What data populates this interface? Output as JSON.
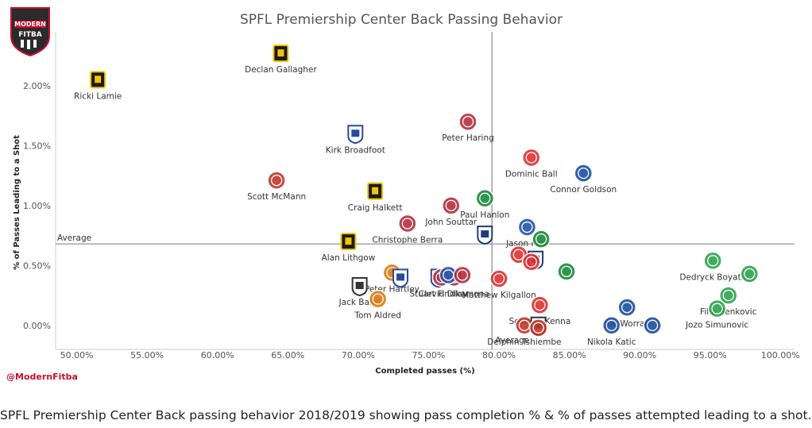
{
  "logo": {
    "line1": "MODERN",
    "line2": "FITBA"
  },
  "handle": "@ModernFitba",
  "caption": "SPFL Premiership Center Back passing behavior 2018/2019 showing pass completion % & % of passes attempted leading to a shot.",
  "chart_data": {
    "type": "scatter",
    "title": "SPFL Premiership Center Back Passing Behavior",
    "xlabel": "Completed passes (%)",
    "ylabel": "% of Passes Leading to a Shot",
    "xlim": [
      48.5,
      101
    ],
    "ylim": [
      -0.2,
      2.45
    ],
    "x_ticks": [
      50,
      55,
      60,
      65,
      70,
      75,
      80,
      85,
      90,
      95,
      100
    ],
    "x_tick_labels": [
      "50.00%",
      "55.00%",
      "60.00%",
      "65.00%",
      "70.00%",
      "75.00%",
      "80.00%",
      "85.00%",
      "90.00%",
      "95.00%",
      "100.00%"
    ],
    "y_ticks": [
      0,
      0.5,
      1.0,
      1.5,
      2.0
    ],
    "y_tick_labels": [
      "0.00%",
      "0.50%",
      "1.00%",
      "1.50%",
      "2.00%"
    ],
    "reference_lines": {
      "x_average": 79.5,
      "x_label": "Average",
      "y_average": 0.68,
      "y_label": "Average"
    },
    "grid": false,
    "clubs": {
      "Livingston": "#f2c500",
      "Hearts": "#b5303f",
      "Aberdeen": "#e03030",
      "Rangers": "#1b4fa0",
      "Hibernian": "#1a8a3a",
      "Celtic": "#2fa24f",
      "Kilmarnock": "#2a4aa0",
      "Dundee": "#1e3b7a",
      "Motherwell": "#e07a10",
      "St Mirren": "#333333",
      "St Johnstone": "#2255aa",
      "Hamilton": "#c0392b"
    },
    "points": [
      {
        "name": "Ricki Lamie",
        "x": 51.5,
        "y": 2.05,
        "club": "Livingston"
      },
      {
        "name": "Declan Gallagher",
        "x": 64.5,
        "y": 2.27,
        "club": "Livingston"
      },
      {
        "name": "Kirk Broadfoot",
        "x": 69.8,
        "y": 1.6,
        "club": "Kilmarnock"
      },
      {
        "name": "Peter Haring",
        "x": 77.8,
        "y": 1.7,
        "club": "Hearts"
      },
      {
        "name": "Dominic Ball",
        "x": 82.3,
        "y": 1.4,
        "club": "Aberdeen"
      },
      {
        "name": "Connor Goldson",
        "x": 86.0,
        "y": 1.27,
        "club": "Rangers"
      },
      {
        "name": "Scott McMann",
        "x": 64.2,
        "y": 1.21,
        "club": "Hamilton"
      },
      {
        "name": "Craig Halkett",
        "x": 71.2,
        "y": 1.12,
        "club": "Livingston"
      },
      {
        "name": "John Souttar",
        "x": 76.6,
        "y": 1.0,
        "club": "Hearts"
      },
      {
        "name": "Paul Hanlon",
        "x": 79.0,
        "y": 1.06,
        "club": "Hibernian"
      },
      {
        "name": "Christophe Berra",
        "x": 73.5,
        "y": 0.85,
        "club": "Hearts"
      },
      {
        "name": "Jason Kerr",
        "x": 82.0,
        "y": 0.82,
        "club": "St Johnstone"
      },
      {
        "name": "Alan Lithgow",
        "x": 69.3,
        "y": 0.7,
        "club": "Livingston"
      },
      {
        "name": "Clevid Dikamona",
        "x": 76.8,
        "y": 0.4,
        "club": "Hearts"
      },
      {
        "name": "Peter Hartley",
        "x": 72.4,
        "y": 0.44,
        "club": "Motherwell"
      },
      {
        "name": "Jack Baird",
        "x": 70.1,
        "y": 0.33,
        "club": "St Mirren"
      },
      {
        "name": "Stuart Findlay",
        "x": 75.7,
        "y": 0.4,
        "club": "Kilmarnock"
      },
      {
        "name": "Tom Aldred",
        "x": 71.4,
        "y": 0.22,
        "club": "Motherwell"
      },
      {
        "name": "Matthew Kilgallon",
        "x": 80.0,
        "y": 0.39,
        "club": "Aberdeen"
      },
      {
        "name": "Dedryck Boyata",
        "x": 95.2,
        "y": 0.54,
        "club": "Celtic"
      },
      {
        "name": "Scott McKenna",
        "x": 82.9,
        "y": 0.17,
        "club": "Aberdeen"
      },
      {
        "name": "Joe Worrall",
        "x": 89.1,
        "y": 0.15,
        "club": "Rangers"
      },
      {
        "name": "Filip Benkovic",
        "x": 96.3,
        "y": 0.25,
        "club": "Celtic"
      },
      {
        "name": "Jozo Simunovic",
        "x": 95.5,
        "y": 0.14,
        "club": "Celtic"
      },
      {
        "name": "Delphin Tshiembe",
        "x": 81.8,
        "y": 0.0,
        "club": "Hamilton"
      },
      {
        "name": "Nikola Katic",
        "x": 88.0,
        "y": 0.0,
        "club": "Rangers"
      },
      {
        "name": "",
        "x": 79.0,
        "y": 0.76,
        "club": "Dundee"
      },
      {
        "name": "",
        "x": 83.0,
        "y": 0.72,
        "club": "Hibernian"
      },
      {
        "name": "",
        "x": 81.4,
        "y": 0.59,
        "club": "Aberdeen"
      },
      {
        "name": "",
        "x": 82.6,
        "y": 0.55,
        "club": "Dundee"
      },
      {
        "name": "",
        "x": 82.3,
        "y": 0.53,
        "club": "Aberdeen"
      },
      {
        "name": "",
        "x": 84.8,
        "y": 0.45,
        "club": "Hibernian"
      },
      {
        "name": "",
        "x": 73.0,
        "y": 0.4,
        "club": "Kilmarnock"
      },
      {
        "name": "",
        "x": 75.9,
        "y": 0.4,
        "club": "Hearts"
      },
      {
        "name": "",
        "x": 76.4,
        "y": 0.42,
        "club": "St Johnstone"
      },
      {
        "name": "",
        "x": 77.4,
        "y": 0.42,
        "club": "Hearts"
      },
      {
        "name": "",
        "x": 82.8,
        "y": 0.0,
        "club": "St Mirren"
      },
      {
        "name": "",
        "x": 90.9,
        "y": 0.0,
        "club": "Rangers"
      },
      {
        "name": "",
        "x": 97.8,
        "y": 0.43,
        "club": "Celtic"
      },
      {
        "name": "",
        "x": 82.8,
        "y": -0.02,
        "club": "Hamilton"
      }
    ]
  }
}
